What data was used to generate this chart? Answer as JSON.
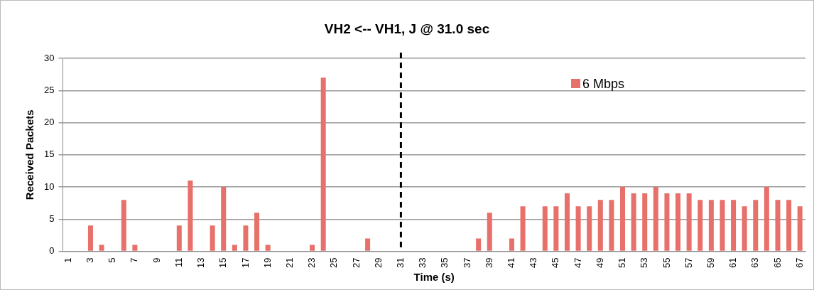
{
  "chart_data": {
    "type": "bar",
    "title": "VH2 <-- VH1, J @ 31.0 sec",
    "xlabel": "Time (s)",
    "ylabel": "Received Packets",
    "categories": [
      "1",
      null,
      "3",
      null,
      "5",
      null,
      "7",
      null,
      "9",
      null,
      "11",
      null,
      "13",
      null,
      "15",
      null,
      "17",
      null,
      "19",
      null,
      "21",
      null,
      "23",
      null,
      "25",
      null,
      "27",
      null,
      "29",
      null,
      "31",
      null,
      "33",
      null,
      "35",
      null,
      "37",
      null,
      "39",
      null,
      "41",
      null,
      "43",
      null,
      "45",
      null,
      "47",
      null,
      "49",
      null,
      "51",
      null,
      "53",
      null,
      "55",
      null,
      "57",
      null,
      "59",
      null,
      "61",
      null,
      "63",
      null,
      "65",
      null,
      "67"
    ],
    "series": [
      {
        "name": "6 Mbps",
        "color": "#e8706b",
        "values": [
          0,
          0,
          4,
          1,
          0,
          8,
          1,
          0,
          0,
          0,
          4,
          11,
          0,
          4,
          10,
          1,
          4,
          6,
          1,
          0,
          0,
          0,
          1,
          27,
          0,
          0,
          0,
          2,
          0,
          0,
          0,
          0,
          0,
          0,
          0,
          0,
          0,
          2,
          6,
          0,
          2,
          7,
          0,
          7,
          7,
          9,
          7,
          7,
          8,
          8,
          10,
          9,
          9,
          10,
          9,
          9,
          9,
          8,
          8,
          8,
          8,
          7,
          8,
          10,
          8,
          8,
          7
        ]
      }
    ],
    "ylim": [
      0,
      30
    ],
    "yticks": [
      0,
      5,
      10,
      15,
      20,
      25,
      30
    ],
    "grid": "y",
    "legend": "top right",
    "ref_lines": [
      {
        "axis": "x",
        "value": "31",
        "color": "#000000",
        "line_style": "dashed"
      }
    ]
  }
}
